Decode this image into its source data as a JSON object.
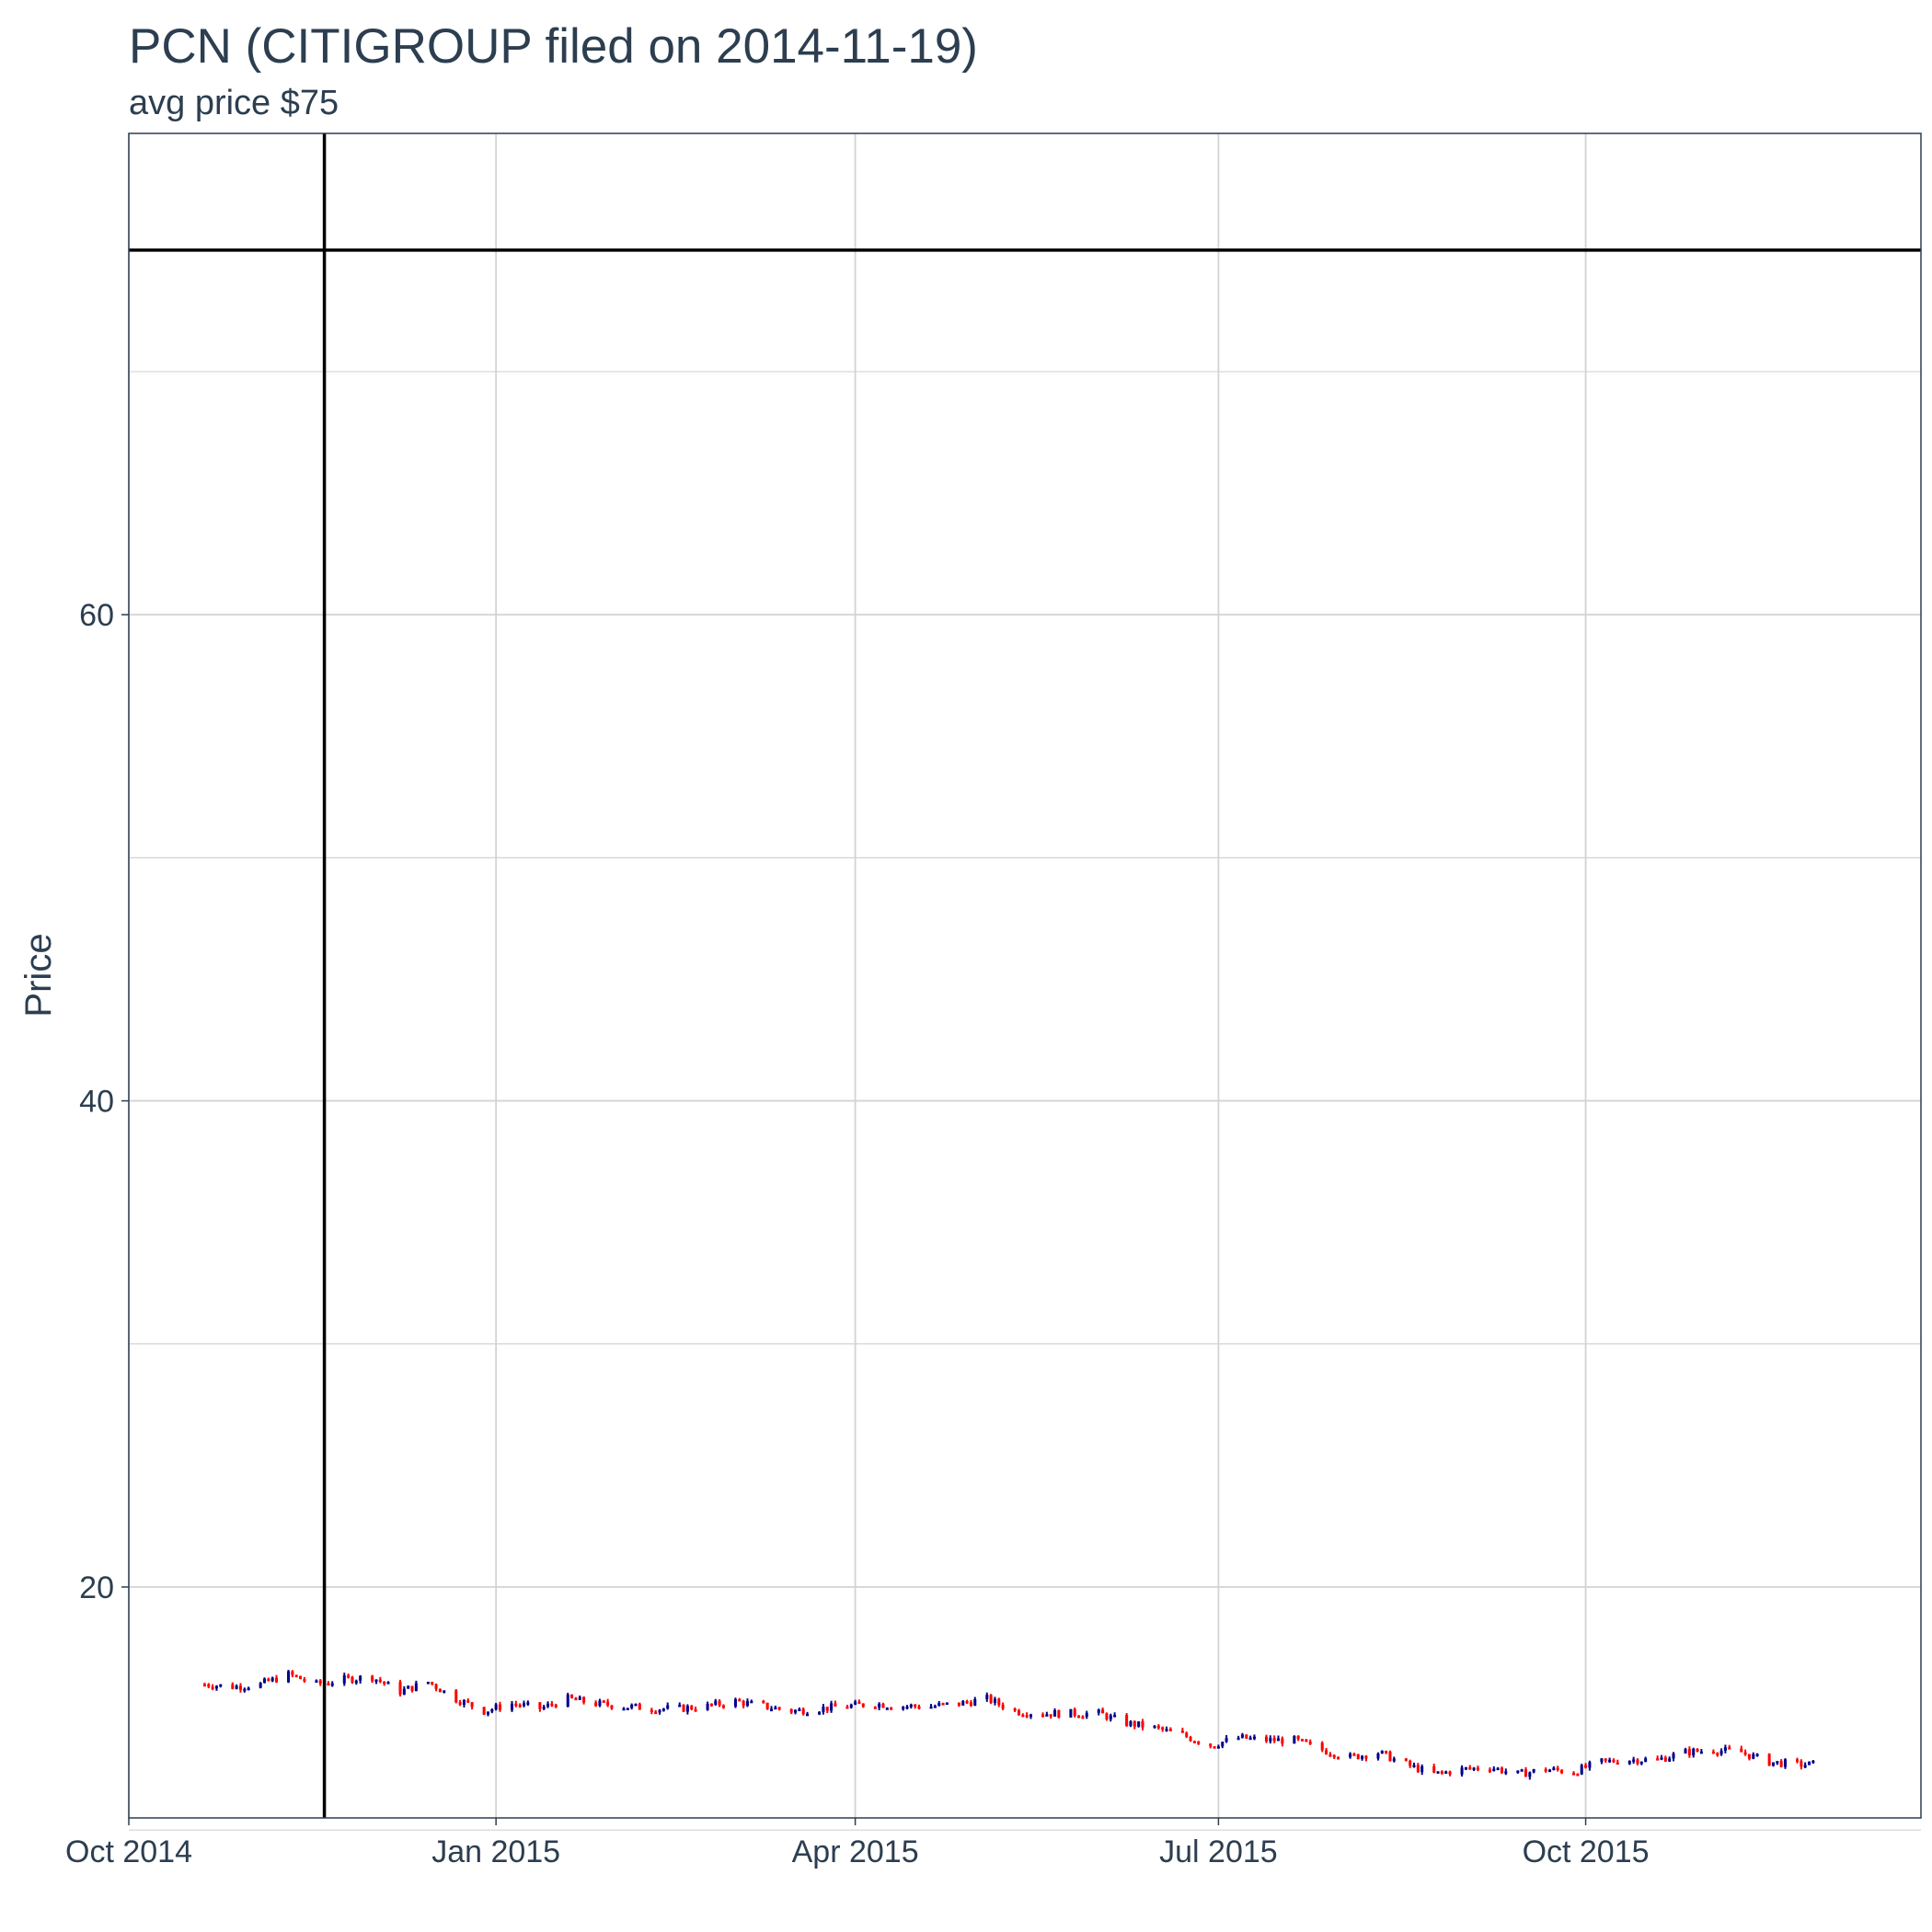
{
  "chart_data": {
    "type": "candlestick",
    "title": "PCN (CITIGROUP filed on 2014-11-19)",
    "subtitle": "avg price $75",
    "xlabel": "",
    "ylabel": "Price",
    "x_tick_labels": [
      "Oct 2014",
      "Jan 2015",
      "Apr 2015",
      "Jul 2015",
      "Oct 2015"
    ],
    "x_ticks": [
      "2014-10-01",
      "2015-01-01",
      "2015-04-01",
      "2015-07-01",
      "2015-10-01"
    ],
    "y_ticks": [
      20,
      40,
      60
    ],
    "ylim": [
      10.5,
      79.8
    ],
    "xlim": [
      "2014-10-01",
      "2015-12-24"
    ],
    "grid": true,
    "filing_date": "2014-11-19",
    "avg_price": 75,
    "colors": {
      "up": "#00008b",
      "down": "#ff0000",
      "reference": "#000000",
      "grid": "#d3d3d3",
      "text": "#2c3e50"
    },
    "series": [
      {
        "date": "2014-10-20",
        "close": 16.0
      },
      {
        "date": "2014-10-27",
        "close": 15.9
      },
      {
        "date": "2014-11-03",
        "close": 16.0
      },
      {
        "date": "2014-11-10",
        "close": 16.4
      },
      {
        "date": "2014-11-17",
        "close": 16.0
      },
      {
        "date": "2014-11-24",
        "close": 16.2
      },
      {
        "date": "2014-12-01",
        "close": 16.3
      },
      {
        "date": "2014-12-08",
        "close": 15.7
      },
      {
        "date": "2014-12-15",
        "close": 16.1
      },
      {
        "date": "2014-12-22",
        "close": 15.4
      },
      {
        "date": "2014-12-29",
        "close": 14.9
      },
      {
        "date": "2015-01-05",
        "close": 15.2
      },
      {
        "date": "2015-01-12",
        "close": 15.0
      },
      {
        "date": "2015-01-19",
        "close": 15.4
      },
      {
        "date": "2015-01-26",
        "close": 15.2
      },
      {
        "date": "2015-02-02",
        "close": 15.1
      },
      {
        "date": "2015-02-09",
        "close": 15.0
      },
      {
        "date": "2015-02-16",
        "close": 15.0
      },
      {
        "date": "2015-02-23",
        "close": 15.1
      },
      {
        "date": "2015-03-02",
        "close": 15.3
      },
      {
        "date": "2015-03-09",
        "close": 15.1
      },
      {
        "date": "2015-03-16",
        "close": 14.9
      },
      {
        "date": "2015-03-23",
        "close": 15.0
      },
      {
        "date": "2015-03-30",
        "close": 15.1
      },
      {
        "date": "2015-04-06",
        "close": 15.2
      },
      {
        "date": "2015-04-13",
        "close": 15.1
      },
      {
        "date": "2015-04-20",
        "close": 15.1
      },
      {
        "date": "2015-04-27",
        "close": 15.2
      },
      {
        "date": "2015-05-04",
        "close": 15.4
      },
      {
        "date": "2015-05-11",
        "close": 14.9
      },
      {
        "date": "2015-05-18",
        "close": 14.8
      },
      {
        "date": "2015-05-25",
        "close": 14.8
      },
      {
        "date": "2015-06-01",
        "close": 14.8
      },
      {
        "date": "2015-06-08",
        "close": 14.4
      },
      {
        "date": "2015-06-15",
        "close": 14.2
      },
      {
        "date": "2015-06-22",
        "close": 13.9
      },
      {
        "date": "2015-06-29",
        "close": 13.5
      },
      {
        "date": "2015-07-06",
        "close": 13.8
      },
      {
        "date": "2015-07-13",
        "close": 13.7
      },
      {
        "date": "2015-07-20",
        "close": 13.7
      },
      {
        "date": "2015-07-27",
        "close": 13.3
      },
      {
        "date": "2015-08-03",
        "close": 13.0
      },
      {
        "date": "2015-08-10",
        "close": 13.2
      },
      {
        "date": "2015-08-17",
        "close": 12.7
      },
      {
        "date": "2015-08-24",
        "close": 12.3
      },
      {
        "date": "2015-08-31",
        "close": 12.5
      },
      {
        "date": "2015-09-07",
        "close": 12.6
      },
      {
        "date": "2015-09-14",
        "close": 12.3
      },
      {
        "date": "2015-09-21",
        "close": 12.5
      },
      {
        "date": "2015-09-28",
        "close": 12.4
      },
      {
        "date": "2015-10-05",
        "close": 12.8
      },
      {
        "date": "2015-10-12",
        "close": 12.9
      },
      {
        "date": "2015-10-19",
        "close": 12.9
      },
      {
        "date": "2015-10-26",
        "close": 13.2
      },
      {
        "date": "2015-11-02",
        "close": 13.3
      },
      {
        "date": "2015-11-09",
        "close": 13.2
      },
      {
        "date": "2015-11-16",
        "close": 12.8
      },
      {
        "date": "2015-11-23",
        "close": 12.7
      }
    ]
  }
}
